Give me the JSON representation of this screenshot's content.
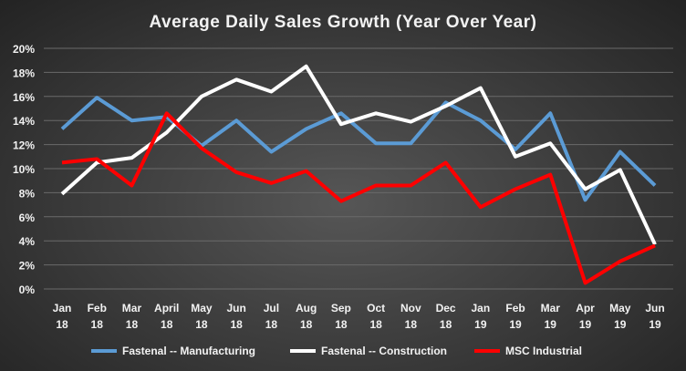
{
  "chart_data": {
    "type": "line",
    "title": "Average Daily Sales Growth (Year Over Year)",
    "xlabel": "",
    "ylabel": "",
    "categories": [
      [
        "Jan",
        "18"
      ],
      [
        "Feb",
        "18"
      ],
      [
        "Mar",
        "18"
      ],
      [
        "April",
        "18"
      ],
      [
        "May",
        "18"
      ],
      [
        "Jun",
        "18"
      ],
      [
        "Jul",
        "18"
      ],
      [
        "Aug",
        "18"
      ],
      [
        "Sep",
        "18"
      ],
      [
        "Oct",
        "18"
      ],
      [
        "Nov",
        "18"
      ],
      [
        "Dec",
        "18"
      ],
      [
        "Jan",
        "19"
      ],
      [
        "Feb",
        "19"
      ],
      [
        "Mar",
        "19"
      ],
      [
        "Apr",
        "19"
      ],
      [
        "May",
        "19"
      ],
      [
        "Jun",
        "19"
      ]
    ],
    "ylim": [
      0,
      20
    ],
    "yticks": [
      "0%",
      "2%",
      "4%",
      "6%",
      "8%",
      "10%",
      "12%",
      "14%",
      "16%",
      "18%",
      "20%"
    ],
    "grid": true,
    "legend_position": "bottom",
    "series": [
      {
        "name": "Fastenal -- Manufacturing",
        "color": "#5b9bd5",
        "values": [
          13.3,
          15.9,
          14.0,
          14.3,
          11.9,
          14.0,
          11.4,
          13.3,
          14.6,
          12.1,
          12.1,
          15.5,
          14.0,
          11.6,
          14.6,
          7.4,
          11.4,
          8.6
        ]
      },
      {
        "name": "Fastenal -- Construction",
        "color": "#ffffff",
        "values": [
          7.9,
          10.5,
          10.9,
          13.0,
          16.0,
          17.4,
          16.4,
          18.5,
          13.7,
          14.6,
          13.9,
          15.2,
          16.7,
          11.0,
          12.1,
          8.3,
          9.9,
          3.7
        ]
      },
      {
        "name": "MSC Industrial",
        "color": "#ff0000",
        "values": [
          10.5,
          10.8,
          8.6,
          14.6,
          11.7,
          9.7,
          8.8,
          9.8,
          7.3,
          8.6,
          8.6,
          10.5,
          6.8,
          8.3,
          9.5,
          0.5,
          2.3,
          3.6
        ]
      }
    ]
  }
}
